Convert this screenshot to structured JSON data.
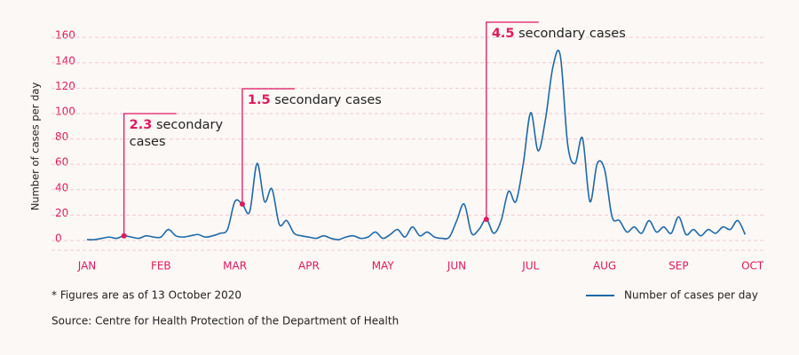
{
  "chart_data": {
    "type": "line",
    "y_label": "Number of cases per day",
    "categories": [
      "JAN",
      null,
      null,
      null,
      null,
      null,
      null,
      null,
      null,
      null,
      "FEB",
      null,
      null,
      null,
      null,
      null,
      null,
      null,
      null,
      null,
      "MAR",
      null,
      null,
      null,
      null,
      null,
      null,
      null,
      null,
      null,
      "APR",
      null,
      null,
      null,
      null,
      null,
      null,
      null,
      null,
      null,
      "MAY",
      null,
      null,
      null,
      null,
      null,
      null,
      null,
      null,
      null,
      "JUN",
      null,
      null,
      null,
      null,
      null,
      null,
      null,
      null,
      null,
      "JUL",
      null,
      null,
      null,
      null,
      null,
      null,
      null,
      null,
      null,
      "AUG",
      null,
      null,
      null,
      null,
      null,
      null,
      null,
      null,
      null,
      "SEP",
      null,
      null,
      null,
      null,
      null,
      null,
      null,
      null,
      null,
      "OCT"
    ],
    "series": [
      {
        "name": "Number of cases per day",
        "color": "#1f69a6",
        "values": [
          0,
          0,
          1,
          2,
          1,
          3,
          2,
          1,
          3,
          2,
          2,
          8,
          3,
          2,
          3,
          4,
          2,
          3,
          5,
          8,
          30,
          28,
          22,
          60,
          30,
          40,
          12,
          15,
          5,
          3,
          2,
          1,
          3,
          1,
          0,
          2,
          3,
          1,
          2,
          6,
          1,
          4,
          8,
          2,
          10,
          3,
          6,
          2,
          1,
          2,
          15,
          28,
          5,
          8,
          16,
          5,
          15,
          38,
          30,
          60,
          100,
          70,
          95,
          136,
          145,
          75,
          60,
          80,
          30,
          60,
          55,
          18,
          15,
          6,
          10,
          5,
          15,
          6,
          10,
          5,
          18,
          4,
          8,
          3,
          8,
          5,
          10,
          8,
          15,
          4,
          null
        ]
      }
    ],
    "ylim": [
      -8.4,
      165
    ],
    "yticks": [
      0,
      20,
      40,
      60,
      80,
      100,
      120,
      140,
      160
    ],
    "grid": true,
    "annotations": [
      {
        "at": 5,
        "value_text": "2.3",
        "text": "secondary cases"
      },
      {
        "at": 21,
        "value_text": "1.5",
        "text": "secondary cases"
      },
      {
        "at": 54,
        "value_text": "4.5",
        "text": "secondary cases"
      }
    ],
    "footnote": "* Figures are as of 13 October 2020",
    "source": "Source: Centre for Health Protection of the Department of Health"
  }
}
